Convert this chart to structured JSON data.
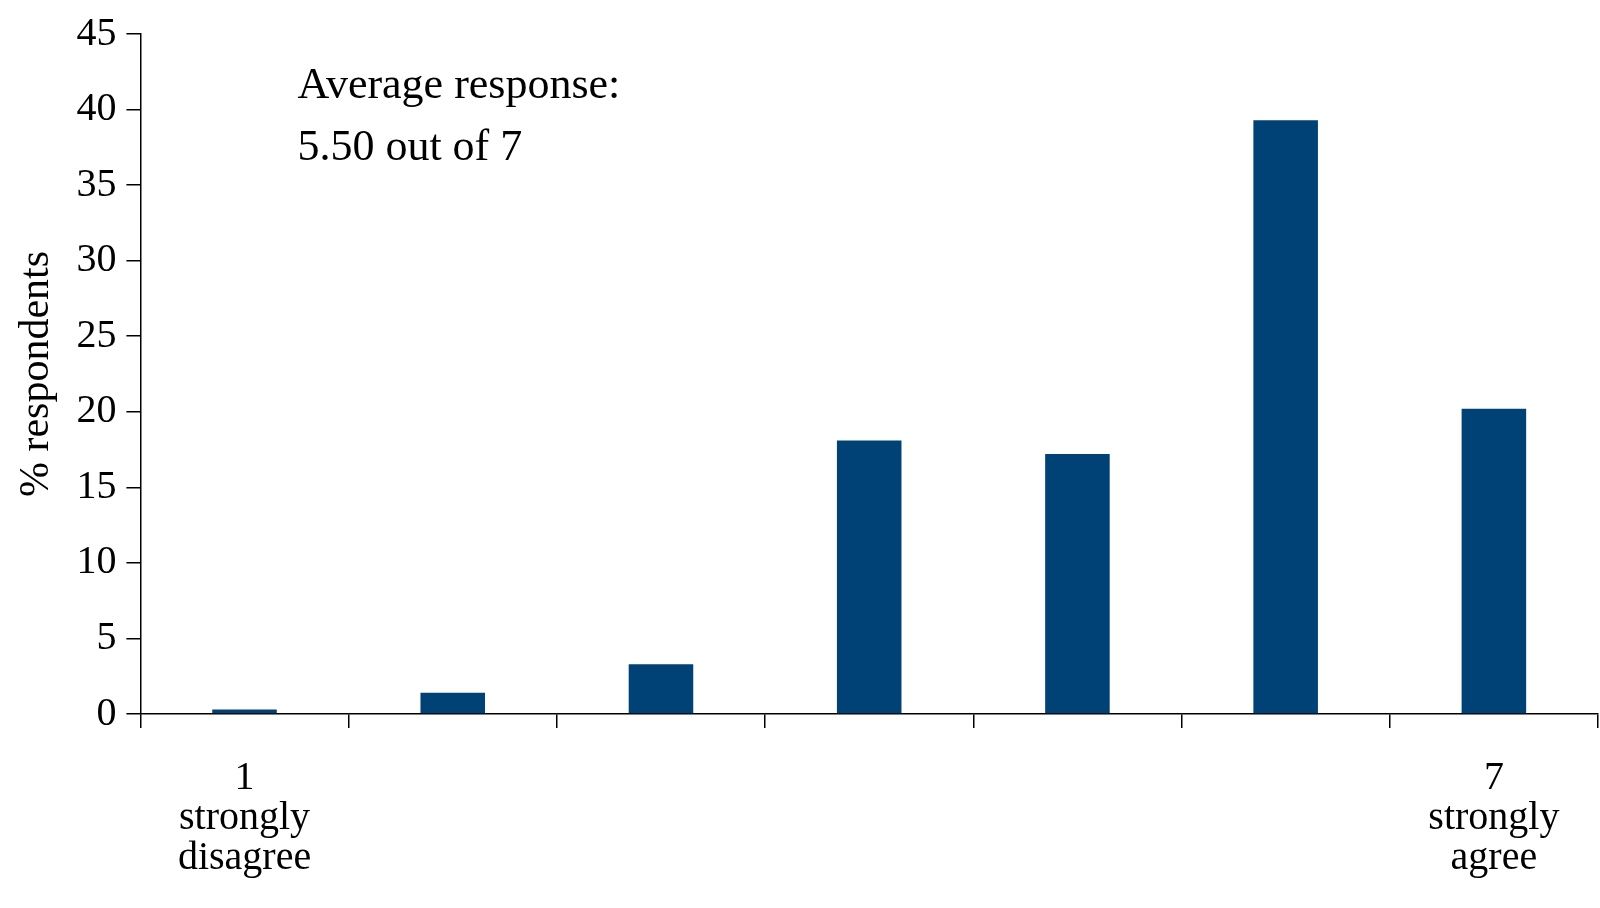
{
  "chart_data": {
    "type": "bar",
    "ylabel": "% respondents",
    "categories": [
      "1\nstrongly\ndisagree",
      null,
      null,
      null,
      null,
      null,
      "7\nstrongly\nagree"
    ],
    "values": [
      0.3,
      1.4,
      3.3,
      18.1,
      17.2,
      39.3,
      20.2
    ],
    "color": "#004275",
    "ylim": [
      0,
      45
    ],
    "yticks": [
      0,
      5,
      10,
      15,
      20,
      25,
      30,
      35,
      40,
      45
    ],
    "annotations": [
      "Average response:\n5.50 out of 7"
    ],
    "grid": false,
    "legend": false
  }
}
